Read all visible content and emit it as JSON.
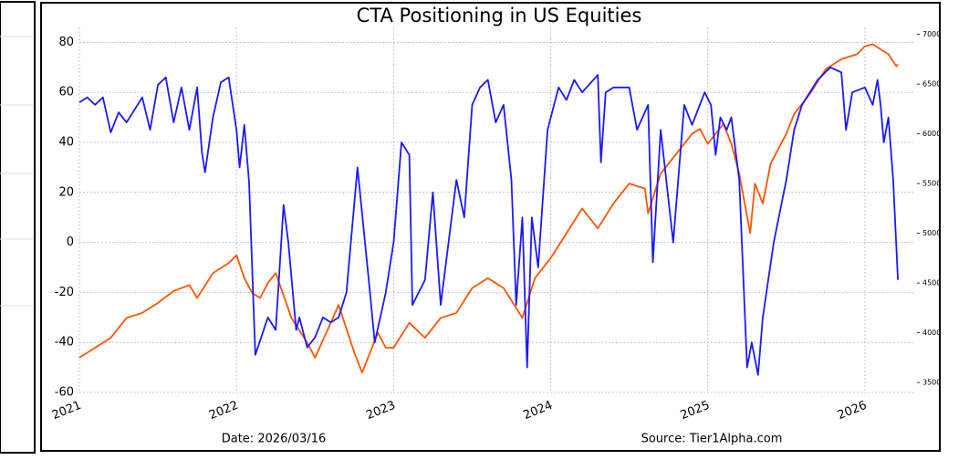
{
  "chart_data": {
    "type": "line",
    "title": "CTA Positioning in US Equities",
    "annotations": [
      "Date: 2026/03/16",
      "Source: Tier1Alpha.com"
    ],
    "xlim": [
      2021,
      2026.32
    ],
    "xticks": [
      2021,
      2022,
      2023,
      2024,
      2025,
      2026
    ],
    "ylim": [
      -60,
      86
    ],
    "yticks": [
      -60,
      -40,
      -20,
      0,
      20,
      40,
      60,
      80
    ],
    "y2lim": [
      3400,
      7070
    ],
    "y2ticks": [
      3500,
      4000,
      4500,
      5000,
      5500,
      6000,
      6500,
      7000
    ],
    "grid": true,
    "series": [
      {
        "color": "#1a1aff",
        "axis": "y",
        "x": [
          2021.0,
          2021.05,
          2021.1,
          2021.15,
          2021.2,
          2021.25,
          2021.3,
          2021.4,
          2021.45,
          2021.5,
          2021.55,
          2021.6,
          2021.65,
          2021.7,
          2021.75,
          2021.78,
          2021.8,
          2021.85,
          2021.9,
          2021.95,
          2022.0,
          2022.02,
          2022.05,
          2022.08,
          2022.12,
          2022.2,
          2022.25,
          2022.3,
          2022.33,
          2022.38,
          2022.4,
          2022.45,
          2022.5,
          2022.55,
          2022.6,
          2022.65,
          2022.7,
          2022.77,
          2022.85,
          2022.88,
          2022.95,
          2023.0,
          2023.05,
          2023.1,
          2023.12,
          2023.2,
          2023.25,
          2023.3,
          2023.4,
          2023.45,
          2023.5,
          2023.55,
          2023.6,
          2023.65,
          2023.7,
          2023.75,
          2023.78,
          2023.82,
          2023.85,
          2023.88,
          2023.92,
          2023.98,
          2024.05,
          2024.1,
          2024.15,
          2024.2,
          2024.3,
          2024.32,
          2024.35,
          2024.4,
          2024.5,
          2024.55,
          2024.62,
          2024.65,
          2024.7,
          2024.78,
          2024.85,
          2024.9,
          2024.98,
          2025.02,
          2025.05,
          2025.08,
          2025.12,
          2025.15,
          2025.2,
          2025.25,
          2025.28,
          2025.32,
          2025.35,
          2025.42,
          2025.5,
          2025.55,
          2025.6,
          2025.7,
          2025.78,
          2025.85,
          2025.88,
          2025.92,
          2026.0,
          2026.05,
          2026.08,
          2026.1,
          2026.12,
          2026.15,
          2026.18,
          2026.21
        ],
        "values": [
          56,
          58,
          55,
          58,
          44,
          52,
          48,
          58,
          45,
          63,
          66,
          48,
          62,
          45,
          62,
          36,
          28,
          50,
          64,
          66,
          45,
          30,
          47,
          24,
          -45,
          -30,
          -35,
          15,
          0,
          -35,
          -30,
          -42,
          -38,
          -30,
          -32,
          -30,
          -20,
          30,
          -20,
          -40,
          -20,
          0,
          40,
          35,
          -25,
          -15,
          20,
          -25,
          25,
          10,
          55,
          62,
          65,
          48,
          55,
          25,
          -25,
          10,
          -50,
          10,
          -10,
          45,
          62,
          57,
          65,
          60,
          67,
          32,
          60,
          62,
          62,
          45,
          55,
          -8,
          45,
          0,
          55,
          47,
          60,
          55,
          35,
          50,
          45,
          50,
          25,
          -50,
          -40,
          -53,
          -30,
          0,
          25,
          45,
          55,
          65,
          70,
          68,
          45,
          60,
          62,
          55,
          65,
          55,
          40,
          50,
          25,
          -15
        ]
      },
      {
        "color": "#ff5500",
        "axis": "y2",
        "x": [
          2021.0,
          2021.1,
          2021.2,
          2021.3,
          2021.4,
          2021.5,
          2021.6,
          2021.7,
          2021.75,
          2021.85,
          2021.95,
          2022.0,
          2022.05,
          2022.1,
          2022.15,
          2022.2,
          2022.25,
          2022.35,
          2022.45,
          2022.5,
          2022.6,
          2022.65,
          2022.75,
          2022.8,
          2022.9,
          2022.95,
          2023.0,
          2023.1,
          2023.2,
          2023.3,
          2023.4,
          2023.5,
          2023.6,
          2023.7,
          2023.82,
          2023.9,
          2024.0,
          2024.1,
          2024.2,
          2024.3,
          2024.4,
          2024.5,
          2024.6,
          2024.62,
          2024.7,
          2024.8,
          2024.9,
          2024.95,
          2025.0,
          2025.1,
          2025.15,
          2025.2,
          2025.27,
          2025.3,
          2025.35,
          2025.4,
          2025.5,
          2025.55,
          2025.65,
          2025.75,
          2025.85,
          2025.95,
          2026.0,
          2026.05,
          2026.1,
          2026.15,
          2026.2,
          2026.21
        ],
        "values": [
          3750,
          3850,
          3950,
          4150,
          4200,
          4300,
          4420,
          4480,
          4350,
          4600,
          4700,
          4780,
          4550,
          4400,
          4350,
          4500,
          4600,
          4150,
          3900,
          3750,
          4100,
          4280,
          3800,
          3600,
          4000,
          3850,
          3850,
          4100,
          3950,
          4150,
          4200,
          4450,
          4550,
          4450,
          4150,
          4550,
          4750,
          5000,
          5250,
          5050,
          5300,
          5500,
          5450,
          5200,
          5600,
          5800,
          6000,
          6050,
          5900,
          6100,
          5900,
          5600,
          5000,
          5500,
          5300,
          5700,
          6000,
          6200,
          6400,
          6650,
          6750,
          6800,
          6880,
          6900,
          6850,
          6800,
          6680,
          6700
        ]
      }
    ]
  }
}
